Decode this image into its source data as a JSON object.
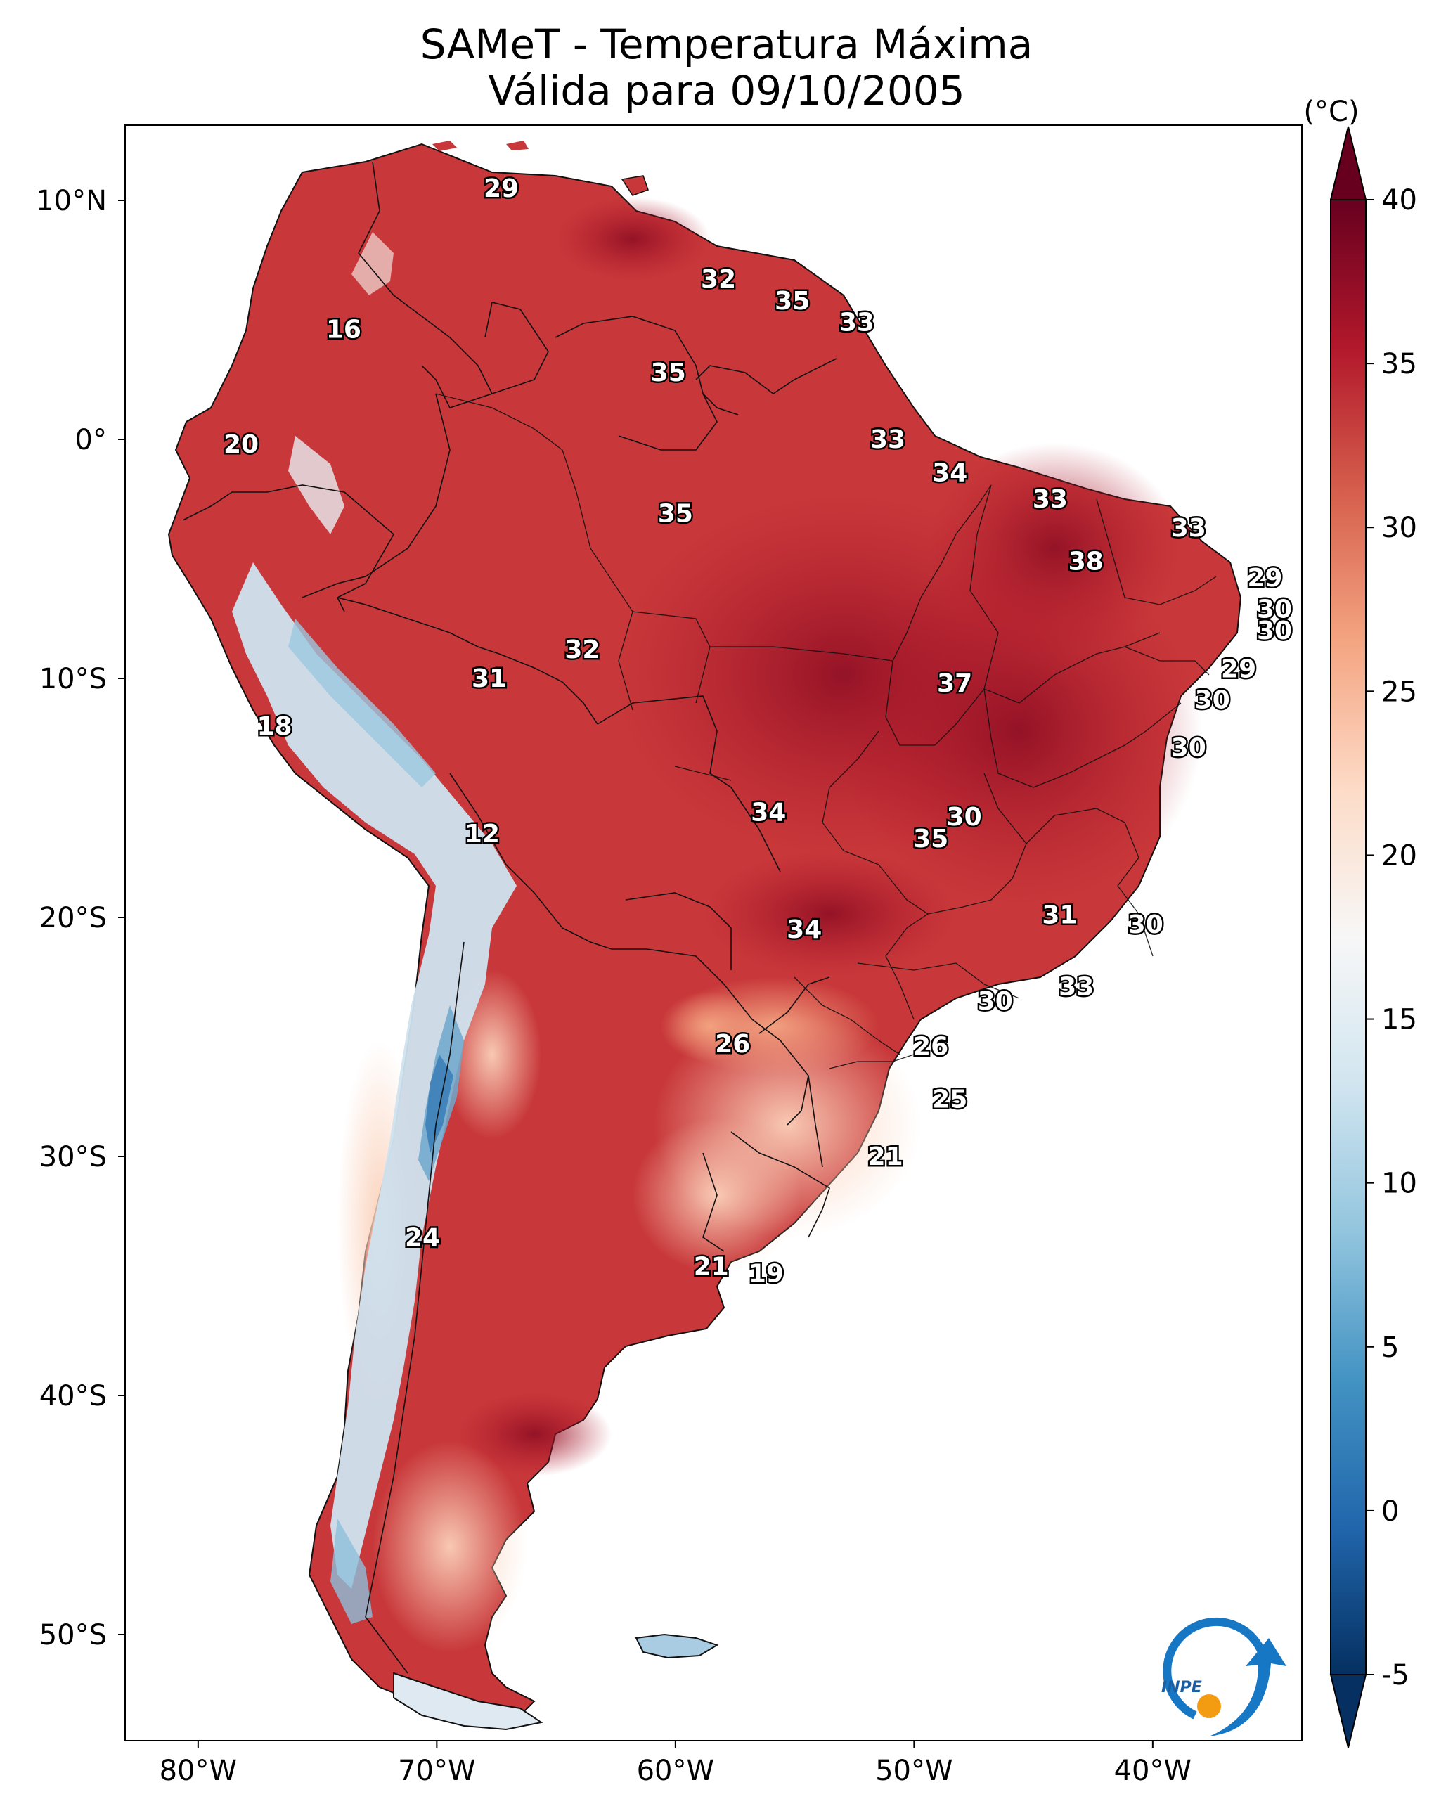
{
  "title_line1": "SAMeT - Temperatura Máxima",
  "title_line2": "Válida para 09/10/2005",
  "unit_label": "(°C)",
  "lat_labels": [
    "10°N",
    "0°",
    "10°S",
    "20°S",
    "30°S",
    "40°S",
    "50°S"
  ],
  "lon_labels": [
    "80°W",
    "70°W",
    "60°W",
    "50°W",
    "40°W"
  ],
  "colorbar": {
    "ticks": [
      "40",
      "35",
      "30",
      "25",
      "20",
      "15",
      "10",
      "5",
      "0",
      "-5"
    ],
    "min": -5,
    "max": 40,
    "colors": [
      "#053061",
      "#2166ac",
      "#4393c3",
      "#92c5de",
      "#d1e5f0",
      "#f7f7f7",
      "#fddbc7",
      "#f4a582",
      "#d6604d",
      "#b2182b",
      "#67001f"
    ]
  },
  "logo_text": "INPE",
  "stations": [
    {
      "value": "29",
      "lon": -67.3,
      "lat": 10.5
    },
    {
      "value": "32",
      "lon": -58.2,
      "lat": 6.7
    },
    {
      "value": "35",
      "lon": -55.1,
      "lat": 5.8
    },
    {
      "value": "33",
      "lon": -52.4,
      "lat": 4.9
    },
    {
      "value": "16",
      "lon": -73.9,
      "lat": 4.6
    },
    {
      "value": "35",
      "lon": -60.3,
      "lat": 2.8
    },
    {
      "value": "20",
      "lon": -78.2,
      "lat": -0.2
    },
    {
      "value": "33",
      "lon": -51.1,
      "lat": 0.0
    },
    {
      "value": "34",
      "lon": -48.5,
      "lat": -1.4
    },
    {
      "value": "33",
      "lon": -44.3,
      "lat": -2.5
    },
    {
      "value": "35",
      "lon": -60.0,
      "lat": -3.1
    },
    {
      "value": "33",
      "lon": -38.5,
      "lat": -3.7
    },
    {
      "value": "38",
      "lon": -42.8,
      "lat": -5.1
    },
    {
      "value": "29",
      "lon": -35.3,
      "lat": -5.8
    },
    {
      "value": "30",
      "lon": -34.9,
      "lat": -7.1
    },
    {
      "value": "30",
      "lon": -34.9,
      "lat": -8.0
    },
    {
      "value": "32",
      "lon": -63.9,
      "lat": -8.8
    },
    {
      "value": "31",
      "lon": -67.8,
      "lat": -10.0
    },
    {
      "value": "29",
      "lon": -36.4,
      "lat": -9.6
    },
    {
      "value": "37",
      "lon": -48.3,
      "lat": -10.2
    },
    {
      "value": "30",
      "lon": -37.5,
      "lat": -10.9
    },
    {
      "value": "18",
      "lon": -76.8,
      "lat": -12.0
    },
    {
      "value": "30",
      "lon": -38.5,
      "lat": -12.9
    },
    {
      "value": "34",
      "lon": -56.1,
      "lat": -15.6
    },
    {
      "value": "30",
      "lon": -47.9,
      "lat": -15.8
    },
    {
      "value": "35",
      "lon": -49.3,
      "lat": -16.7
    },
    {
      "value": "12",
      "lon": -68.1,
      "lat": -16.5
    },
    {
      "value": "31",
      "lon": -43.9,
      "lat": -19.9
    },
    {
      "value": "34",
      "lon": -54.6,
      "lat": -20.5
    },
    {
      "value": "30",
      "lon": -40.3,
      "lat": -20.3
    },
    {
      "value": "33",
      "lon": -43.2,
      "lat": -22.9
    },
    {
      "value": "30",
      "lon": -46.6,
      "lat": -23.5
    },
    {
      "value": "26",
      "lon": -57.6,
      "lat": -25.3
    },
    {
      "value": "26",
      "lon": -49.3,
      "lat": -25.4
    },
    {
      "value": "25",
      "lon": -48.5,
      "lat": -27.6
    },
    {
      "value": "21",
      "lon": -51.2,
      "lat": -30.0
    },
    {
      "value": "24",
      "lon": -70.6,
      "lat": -33.4
    },
    {
      "value": "21",
      "lon": -58.5,
      "lat": -34.6
    },
    {
      "value": "19",
      "lon": -56.2,
      "lat": -34.9
    }
  ]
}
